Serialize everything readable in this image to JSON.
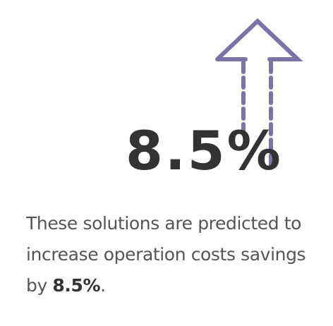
{
  "graphic": {
    "arrow_icon": "dashed-up-arrow-icon",
    "arrow_color": "#7b72a8"
  },
  "stat": {
    "value": "8.5%",
    "color": "#333333"
  },
  "caption": {
    "line1": "These solutions are predicted to",
    "line2": "increase operation costs savings",
    "prefix": "by ",
    "highlight": "8.5%",
    "suffix": "."
  }
}
